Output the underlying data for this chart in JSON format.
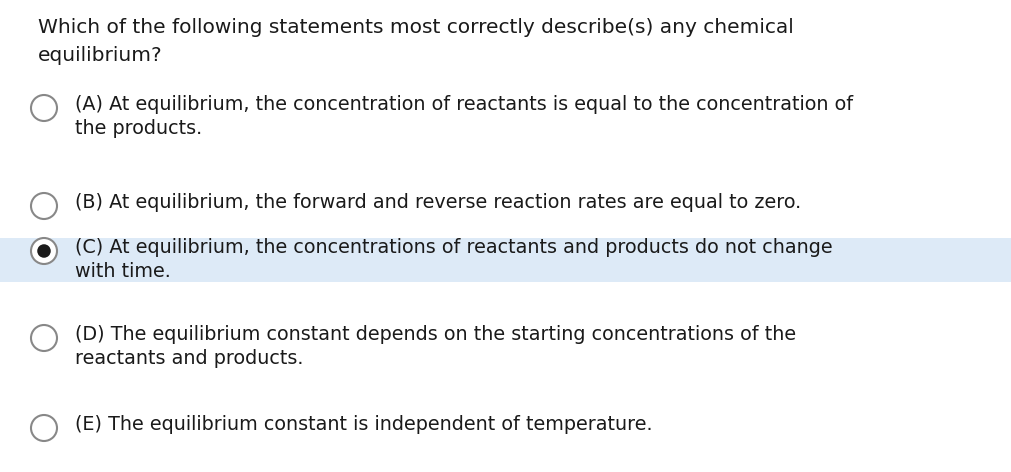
{
  "background_color": "#ffffff",
  "highlight_color": "#ddeaf7",
  "question_line1": "Which of the following statements most correctly describe(s) any chemical",
  "question_line2": "equilibrium?",
  "options": [
    {
      "label": "A",
      "line1": "(A) At equilibrium, the concentration of reactants is equal to the concentration of",
      "line2": "the products.",
      "selected": false,
      "highlighted": false
    },
    {
      "label": "B",
      "line1": "(B) At equilibrium, the forward and reverse reaction rates are equal to zero.",
      "line2": "",
      "selected": false,
      "highlighted": false
    },
    {
      "label": "C",
      "line1": "(C) At equilibrium, the concentrations of reactants and products do not change",
      "line2": "with time.",
      "selected": true,
      "highlighted": true
    },
    {
      "label": "D",
      "line1": "(D) The equilibrium constant depends on the starting concentrations of the",
      "line2": "reactants and products.",
      "selected": false,
      "highlighted": false
    },
    {
      "label": "E",
      "line1": "(E) The equilibrium constant is independent of temperature.",
      "line2": "",
      "selected": false,
      "highlighted": false
    }
  ],
  "text_color": "#1a1a1a",
  "circle_edge_color": "#888888",
  "selected_fill_color": "#1a1a1a"
}
